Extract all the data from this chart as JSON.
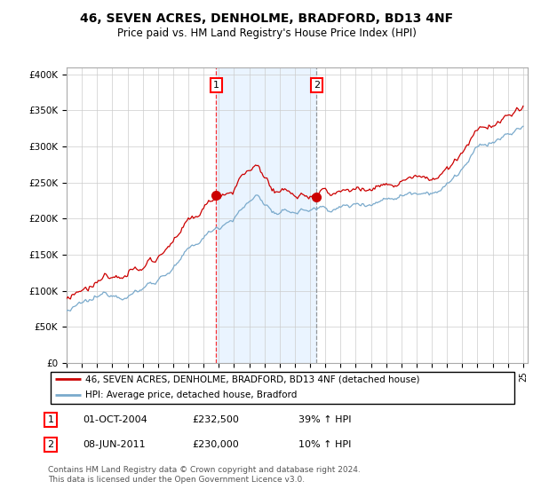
{
  "title": "46, SEVEN ACRES, DENHOLME, BRADFORD, BD13 4NF",
  "subtitle": "Price paid vs. HM Land Registry's House Price Index (HPI)",
  "ylim": [
    0,
    400000
  ],
  "yticks": [
    0,
    50000,
    100000,
    150000,
    200000,
    250000,
    300000,
    350000,
    400000
  ],
  "sale1_year": 2004.792,
  "sale1_price": 232500,
  "sale2_year": 2011.44,
  "sale2_price": 230000,
  "legend_line1": "46, SEVEN ACRES, DENHOLME, BRADFORD, BD13 4NF (detached house)",
  "legend_line2": "HPI: Average price, detached house, Bradford",
  "row1_label": "1",
  "row1_date": "01-OCT-2004",
  "row1_price": "£232,500",
  "row1_pct": "39% ↑ HPI",
  "row2_label": "2",
  "row2_date": "08-JUN-2011",
  "row2_price": "£230,000",
  "row2_pct": "10% ↑ HPI",
  "footnote1": "Contains HM Land Registry data © Crown copyright and database right 2024.",
  "footnote2": "This data is licensed under the Open Government Licence v3.0.",
  "line_color_red": "#cc0000",
  "line_color_blue": "#7aaacc",
  "shaded_color": "#ddeeff",
  "grid_color": "#cccccc",
  "background_color": "#ffffff"
}
